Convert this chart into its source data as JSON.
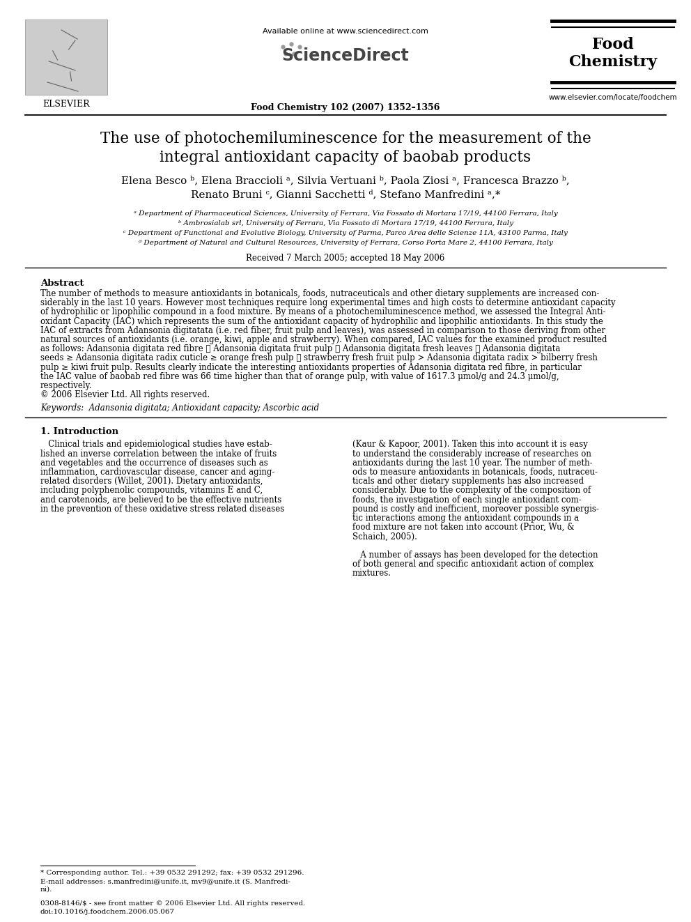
{
  "title_line1": "The use of photochemiluminescence for the measurement of the",
  "title_line2": "integral antioxidant capacity of baobab products",
  "authors_line1": "Elena Besco ᵇ, Elena Braccioli ᵃ, Silvia Vertuani ᵇ, Paola Ziosi ᵃ, Francesca Brazzo ᵇ,",
  "authors_line2": "Renato Bruni ᶜ, Gianni Sacchetti ᵈ, Stefano Manfredini ᵃ,*",
  "affil_a": "ᵃ Department of Pharmaceutical Sciences, University of Ferrara, Via Fossato di Mortara 17/19, 44100 Ferrara, Italy",
  "affil_b": "ᵇ Ambrosialab srl, University of Ferrara, Via Fossato di Mortara 17/19, 44100 Ferrara, Italy",
  "affil_c": "ᶜ Department of Functional and Evolutive Biology, University of Parma, Parco Area delle Scienze 11A, 43100 Parma, Italy",
  "affil_d": "ᵈ Department of Natural and Cultural Resources, University of Ferrara, Corso Porta Mare 2, 44100 Ferrara, Italy",
  "received": "Received 7 March 2005; accepted 18 May 2006",
  "journal_header": "Food Chemistry 102 (2007) 1352–1356",
  "available_online": "Available online at www.sciencedirect.com",
  "journal_name_line1": "Food",
  "journal_name_line2": "Chemistry",
  "journal_url": "www.elsevier.com/locate/foodchem",
  "elsevier": "ELSEVIER",
  "abstract_title": "Abstract",
  "abstract_lines": [
    "The number of methods to measure antioxidants in botanicals, foods, nutraceuticals and other dietary supplements are increased con-",
    "siderably in the last 10 years. However most techniques require long experimental times and high costs to determine antioxidant capacity",
    "of hydrophilic or lipophilic compound in a food mixture. By means of a photochemiluminescence method, we assessed the Integral Anti-",
    "oxidant Capacity (IAC) which represents the sum of the antioxidant capacity of hydrophilic and lipophilic antioxidants. In this study the",
    "IAC of extracts from Adansonia digitatata (i.e. red fiber, fruit pulp and leaves), was assessed in comparison to those deriving from other",
    "natural sources of antioxidants (i.e. orange, kiwi, apple and strawberry). When compared, IAC values for the examined product resulted",
    "as follows: Adansonia digitata red fibre ≫ Adansonia digitata fruit pulp ≫ Adansonia digitata fresh leaves ≫ Adansonia digitata",
    "seeds ≥ Adansonia digitata radix cuticle ≥ orange fresh pulp ≫ strawberry fresh fruit pulp > Adansonia digitata radix > bilberry fresh",
    "pulp ≥ kiwi fruit pulp. Results clearly indicate the interesting antioxidants properties of Adansonia digitata red fibre, in particular",
    "the IAC value of baobab red fibre was 66 time higher than that of orange pulp, with value of 1617.3 μmol/g and 24.3 μmol/g,",
    "respectively.",
    "© 2006 Elsevier Ltd. All rights reserved."
  ],
  "keywords": "Keywords:  Adansonia digitata; Antioxidant capacity; Ascorbic acid",
  "intro_title": "1. Introduction",
  "intro_col1_lines": [
    "   Clinical trials and epidemiological studies have estab-",
    "lished an inverse correlation between the intake of fruits",
    "and vegetables and the occurrence of diseases such as",
    "inflammation, cardiovascular disease, cancer and aging-",
    "related disorders (Willet, 2001). Dietary antioxidants,",
    "including polyphenolic compounds, vitamins E and C,",
    "and carotenoids, are believed to be the effective nutrients",
    "in the prevention of these oxidative stress related diseases"
  ],
  "intro_col2_lines": [
    "(Kaur & Kapoor, 2001). Taken this into account it is easy",
    "to understand the considerably increase of researches on",
    "antioxidants during the last 10 year. The number of meth-",
    "ods to measure antioxidants in botanicals, foods, nutraceu-",
    "ticals and other dietary supplements has also increased",
    "considerably. Due to the complexity of the composition of",
    "foods, the investigation of each single antioxidant com-",
    "pound is costly and inefficient, moreover possible synergis-",
    "tic interactions among the antioxidant compounds in a",
    "food mixture are not taken into account (Prior, Wu, &",
    "Schaich, 2005).",
    "",
    "   A number of assays has been developed for the detection",
    "of both general and specific antioxidant action of complex",
    "mixtures."
  ],
  "footnote_lines": [
    "* Corresponding author. Tel.: +39 0532 291292; fax: +39 0532 291296.",
    "E-mail addresses: s.manfredini@unife.it, mv9@unife.it (S. Manfredi-",
    "ni)."
  ],
  "bottom_text_lines": [
    "0308-8146/$ - see front matter © 2006 Elsevier Ltd. All rights reserved.",
    "doi:10.1016/j.foodchem.2006.05.067"
  ],
  "bg_color": "#ffffff",
  "text_color": "#000000"
}
